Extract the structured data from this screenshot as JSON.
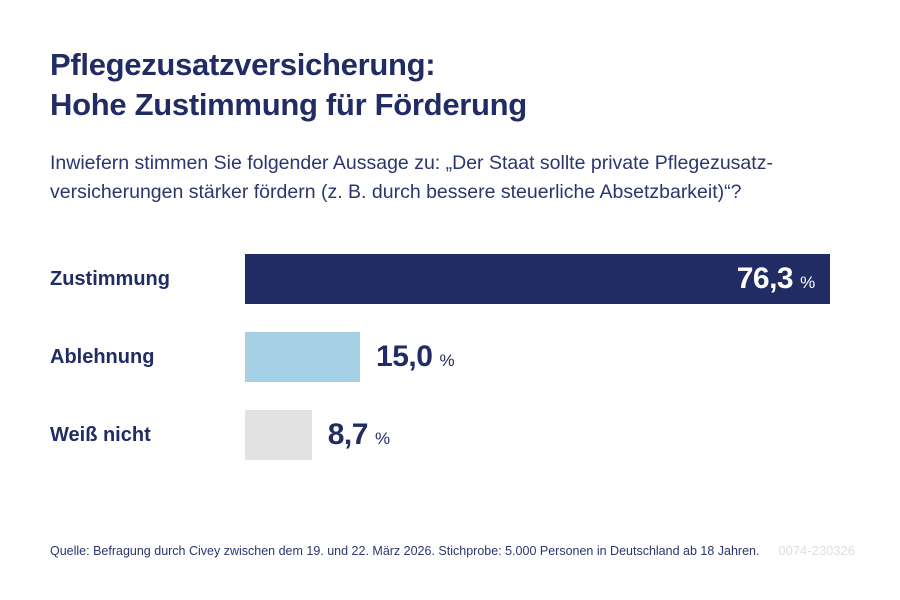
{
  "header": {
    "title_line1": "Pflegezusatzversicherung:",
    "title_line2": "Hohe Zustimmung für Förderung",
    "question": "Inwiefern stimmen Sie folgender Aussage zu: „Der Staat sollte private Pflegezusatz-\nversicherungen stärker fördern (z. B. durch bessere steuerliche Absetzbarkeit)“?"
  },
  "chart_data": {
    "type": "bar",
    "orientation": "horizontal",
    "title": "Pflegezusatzversicherung: Hohe Zustimmung für Förderung",
    "categories": [
      "Zustimmung",
      "Ablehnung",
      "Weiß nicht"
    ],
    "values": [
      76.3,
      15.0,
      8.7
    ],
    "value_labels": [
      "76,3",
      "15,0",
      "8,7"
    ],
    "unit": "%",
    "bar_colors": [
      "#212c64",
      "#a6d0e4",
      "#e2e2e2"
    ],
    "value_label_inside": [
      true,
      false,
      false
    ],
    "xlim": [
      0,
      100
    ],
    "grid": false,
    "legend": false
  },
  "footer": {
    "source": "Quelle: Befragung durch Civey zwischen dem 19. und 22. März 2026. Stichprobe: 5.000 Personen in Deutschland ab 18 Jahren.",
    "code": "0074-230326"
  },
  "colors": {
    "navy": "#212c64",
    "light_blue": "#a6d0e4",
    "light_gray": "#e2e2e2",
    "code_gray": "#dfdfdf",
    "background": "#ffffff"
  }
}
